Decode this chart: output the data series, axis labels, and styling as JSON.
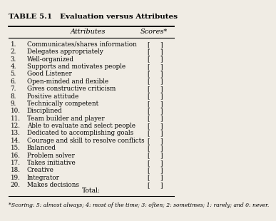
{
  "title": "TABLE 5.1   Evaluation versus Attributes",
  "col_attributes": "Attributes",
  "col_scores": "Scores*",
  "rows": [
    {
      "num": "1.",
      "attr": "Communicates/shares information"
    },
    {
      "num": "2.",
      "attr": "Delegates appropriately"
    },
    {
      "num": "3.",
      "attr": "Well-organized"
    },
    {
      "num": "4.",
      "attr": "Supports and motivates people"
    },
    {
      "num": "5.",
      "attr": "Good Listener"
    },
    {
      "num": "6.",
      "attr": "Open-minded and flexible"
    },
    {
      "num": "7.",
      "attr": "Gives constructive criticism"
    },
    {
      "num": "8.",
      "attr": "Positive attitude"
    },
    {
      "num": "9.",
      "attr": "Technically competent"
    },
    {
      "num": "10.",
      "attr": "Disciplined"
    },
    {
      "num": "11.",
      "attr": "Team builder and player"
    },
    {
      "num": "12.",
      "attr": "Able to evaluate and select people"
    },
    {
      "num": "13.",
      "attr": "Dedicated to accomplishing goals"
    },
    {
      "num": "14.",
      "attr": "Courage and skill to resolve conflicts"
    },
    {
      "num": "15.",
      "attr": "Balanced"
    },
    {
      "num": "16.",
      "attr": "Problem solver"
    },
    {
      "num": "17.",
      "attr": "Takes initiative"
    },
    {
      "num": "18.",
      "attr": "Creative"
    },
    {
      "num": "19.",
      "attr": "Integrator"
    },
    {
      "num": "20.",
      "attr": "Makes decisions"
    }
  ],
  "total_label": "Total:",
  "footnote": "*Scoring: 5: almost always; 4: most of the time; 3: often; 2: sometimes; 1: rarely; and 0: never.",
  "bg_color": "#f0ece4",
  "text_color": "#000000",
  "title_fontsize": 7.5,
  "header_fontsize": 7.0,
  "row_fontsize": 6.3,
  "footnote_fontsize": 5.5
}
